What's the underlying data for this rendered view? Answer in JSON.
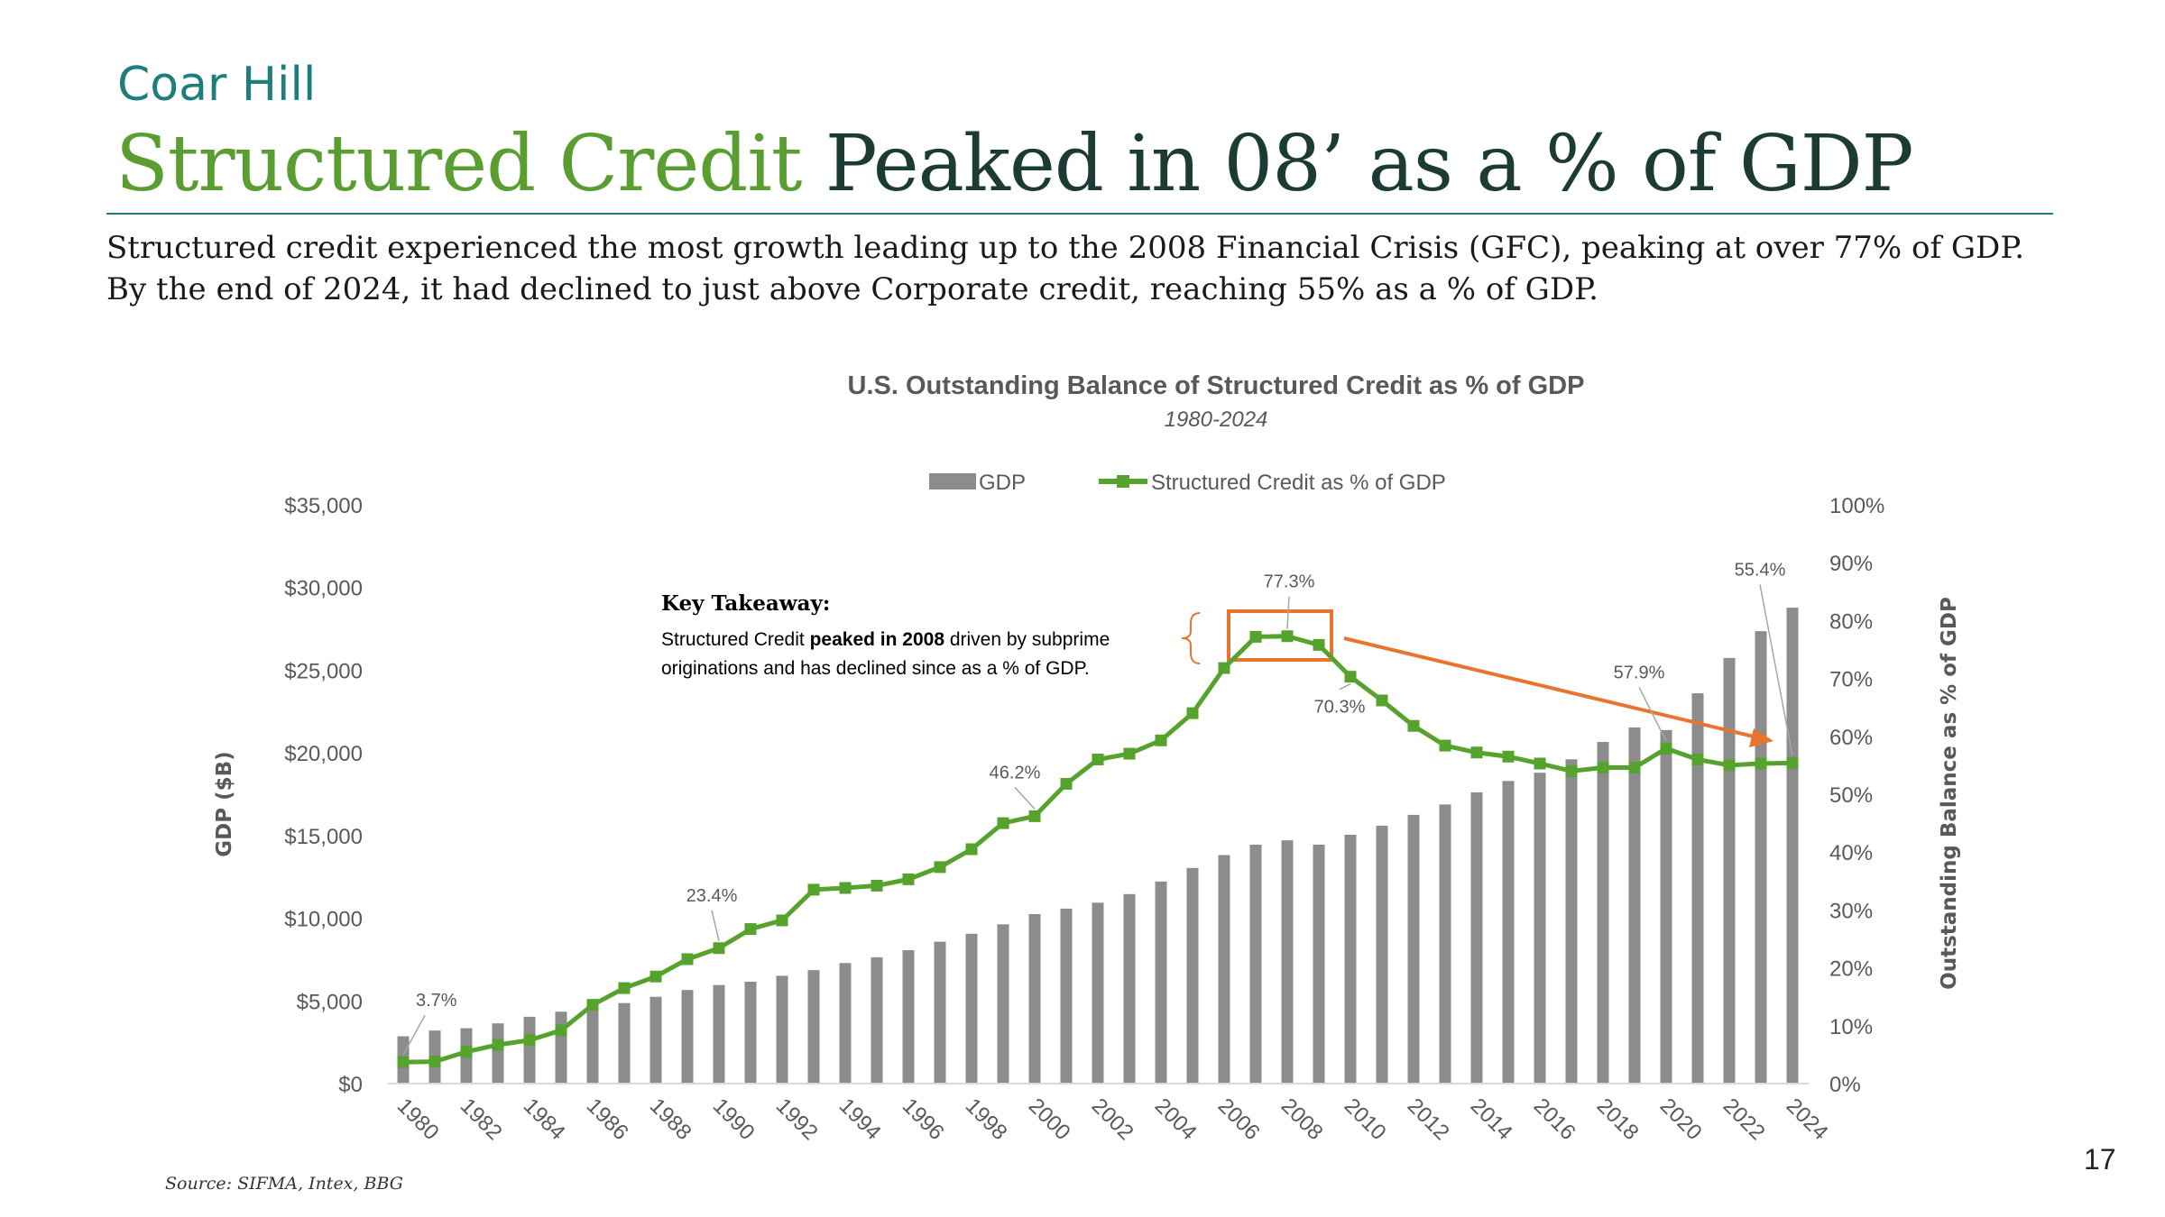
{
  "header": {
    "brand": "Coar Hill",
    "title_highlight": "Structured Credit",
    "title_rest": " Peaked in 08’ as a % of GDP",
    "intro": "Structured credit experienced the most growth leading up to the 2008 Financial Crisis (GFC), peaking at over 77% of GDP. By the end of 2024, it had declined to just above Corporate credit, reaching 55% as a % of GDP."
  },
  "callout": {
    "heading": "Key Takeaway:",
    "line1_pre": "Structured Credit ",
    "line1_bold": "peaked in 2008",
    "line1_post": " driven by subprime",
    "line2": "originations and has declined since as a % of GDP."
  },
  "footer": {
    "source": "Source: SIFMA, Intex, BBG",
    "page_number": "17"
  },
  "colors": {
    "gdp_bar": "#8c8c8c",
    "line": "#55a22c",
    "highlight": "#e8742d",
    "axis_text": "#595959",
    "title_text": "#595959"
  },
  "chart_data": {
    "type": "bar",
    "title": "U.S. Outstanding Balance of Structured Credit as % of GDP",
    "subtitle": "1980-2024",
    "ylabel_left": "GDP ($B)",
    "ylabel_right": "Outstanding Balance as % of GDP",
    "ylim_left": [
      0,
      35000
    ],
    "ylim_right": [
      0,
      100
    ],
    "yticks_left": [
      "$0",
      "$5,000",
      "$10,000",
      "$15,000",
      "$20,000",
      "$25,000",
      "$30,000",
      "$35,000"
    ],
    "yticks_right": [
      "0%",
      "10%",
      "20%",
      "30%",
      "40%",
      "50%",
      "60%",
      "70%",
      "80%",
      "90%",
      "100%"
    ],
    "grid": false,
    "legend_position": "top",
    "x": [
      1980,
      1981,
      1982,
      1983,
      1984,
      1985,
      1986,
      1987,
      1988,
      1989,
      1990,
      1991,
      1992,
      1993,
      1994,
      1995,
      1996,
      1997,
      1998,
      1999,
      2000,
      2001,
      2002,
      2003,
      2004,
      2005,
      2006,
      2007,
      2008,
      2009,
      2010,
      2011,
      2012,
      2013,
      2014,
      2015,
      2016,
      2017,
      2018,
      2019,
      2020,
      2021,
      2022,
      2023,
      2024
    ],
    "xtick_labels": [
      "1980",
      "1982",
      "1984",
      "1986",
      "1988",
      "1990",
      "1992",
      "1994",
      "1996",
      "1998",
      "2000",
      "2002",
      "2004",
      "2006",
      "2008",
      "2010",
      "2012",
      "2014",
      "2016",
      "2018",
      "2020",
      "2022",
      "2024"
    ],
    "series": [
      {
        "name": "GDP",
        "type": "bar",
        "axis": "left",
        "values": [
          2860,
          3210,
          3350,
          3640,
          4040,
          4350,
          4590,
          4870,
          5250,
          5660,
          5960,
          6160,
          6520,
          6860,
          7290,
          7640,
          8070,
          8580,
          9060,
          9630,
          10250,
          10580,
          10940,
          11460,
          12220,
          13040,
          13820,
          14450,
          14710,
          14450,
          15050,
          15600,
          16250,
          16880,
          17610,
          18300,
          18800,
          19610,
          20660,
          21540,
          21380,
          23600,
          25740,
          27360,
          28780
        ]
      },
      {
        "name": "Structured Credit as % of GDP",
        "type": "line",
        "axis": "right",
        "values": [
          3.7,
          3.8,
          5.5,
          6.7,
          7.5,
          9.2,
          13.6,
          16.5,
          18.5,
          21.5,
          23.4,
          26.7,
          28.2,
          33.5,
          33.8,
          34.2,
          35.3,
          37.4,
          40.5,
          45.0,
          46.2,
          51.8,
          56.0,
          57.0,
          59.3,
          64.0,
          71.8,
          77.2,
          77.3,
          75.8,
          70.3,
          66.2,
          61.8,
          58.4,
          57.2,
          56.5,
          55.3,
          54.0,
          54.6,
          54.6,
          57.9,
          56.0,
          55.0,
          55.3,
          55.4
        ]
      }
    ],
    "annotations": [
      {
        "year": 1980,
        "text": "3.7%"
      },
      {
        "year": 1990,
        "text": "23.4%"
      },
      {
        "year": 2000,
        "text": "46.2%"
      },
      {
        "year": 2008,
        "text": "77.3%"
      },
      {
        "year": 2010,
        "text": "70.3%"
      },
      {
        "year": 2020,
        "text": "57.9%"
      },
      {
        "year": 2024,
        "text": "55.4%"
      }
    ]
  }
}
